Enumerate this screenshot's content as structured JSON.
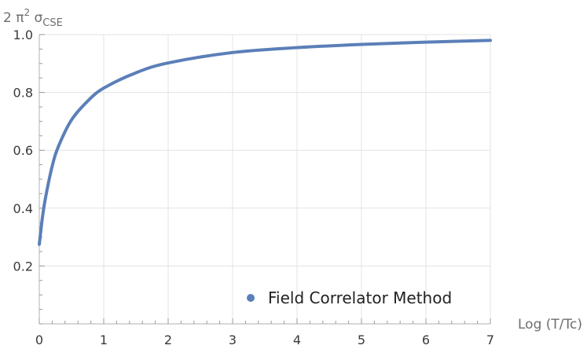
{
  "chart_data": {
    "type": "line",
    "title": "",
    "xlabel": "Log (T/Tc)",
    "ylabel": {
      "prefix": "2 π",
      "power": "2",
      "symbol": " σ",
      "subscript": "CSE"
    },
    "xlim": [
      0,
      7
    ],
    "ylim": [
      0,
      1.0
    ],
    "x_ticks": [
      "0",
      "1",
      "2",
      "3",
      "4",
      "5",
      "6",
      "7"
    ],
    "y_ticks": [
      "0.2",
      "0.4",
      "0.6",
      "0.8",
      "1.0"
    ],
    "grid": true,
    "legend_position": "bottom-right",
    "series": [
      {
        "name": "Field Correlator Method",
        "color": "#5b7fb8",
        "x": [
          0,
          0.05,
          0.1,
          0.2,
          0.3,
          0.5,
          0.75,
          1.0,
          1.5,
          2.0,
          3.0,
          4.0,
          5.0,
          6.0,
          7.0
        ],
        "y": [
          0.275,
          0.37,
          0.44,
          0.545,
          0.615,
          0.705,
          0.77,
          0.815,
          0.868,
          0.902,
          0.938,
          0.955,
          0.966,
          0.974,
          0.98
        ]
      }
    ]
  }
}
